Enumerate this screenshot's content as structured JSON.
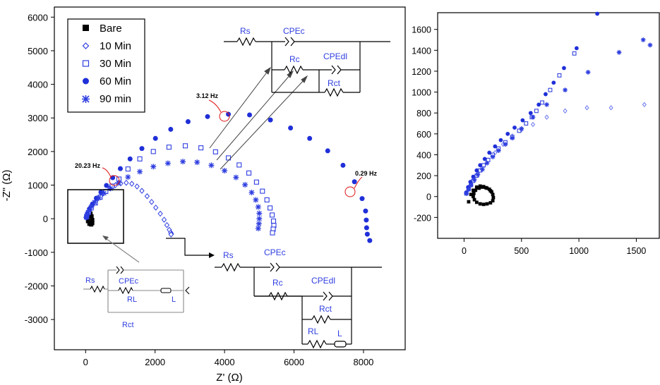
{
  "chart_data": [
    {
      "type": "scatter",
      "xlabel": "Z' (Ω)",
      "ylabel": "-Z\" (Ω)",
      "xlim": [
        -900,
        9200
      ],
      "ylim": [
        -3900,
        6300
      ],
      "xticks": [
        "0",
        "2000",
        "4000",
        "6000",
        "8000"
      ],
      "yticks": [
        "6000",
        "5000",
        "4000",
        "3000",
        "2000",
        "1000",
        "0",
        "-1000",
        "-2000",
        "-3000"
      ],
      "legend": {
        "position": "top-left",
        "entries": [
          "Bare",
          "10 Min",
          "30 Min",
          "60 Min",
          "90 min"
        ]
      },
      "series": [
        {
          "name": "Bare",
          "marker": "filled-square",
          "color": "#000000",
          "x": [
            80,
            110,
            140,
            170,
            190,
            190,
            160,
            110,
            70,
            60,
            80
          ],
          "y": [
            100,
            160,
            150,
            70,
            -40,
            -130,
            -170,
            -150,
            -70,
            20,
            100
          ]
        },
        {
          "name": "10 Min",
          "marker": "open-diamond",
          "color": "#2f3fe0",
          "x": [
            20,
            40,
            90,
            150,
            230,
            330,
            450,
            560,
            700,
            860,
            1010,
            1170,
            1330,
            1480,
            1620,
            1770,
            1900,
            2020,
            2150,
            2260,
            2340,
            2410,
            2450,
            2470,
            2460
          ],
          "y": [
            40,
            120,
            220,
            330,
            450,
            570,
            690,
            800,
            910,
            1000,
            1050,
            1070,
            1040,
            960,
            830,
            670,
            500,
            330,
            150,
            -30,
            -190,
            -330,
            -410,
            -450,
            -470
          ]
        },
        {
          "name": "30 Min",
          "marker": "open-square",
          "color": "#2f3fe0",
          "x": [
            30,
            80,
            160,
            280,
            420,
            580,
            760,
            960,
            1220,
            1560,
            1950,
            2400,
            2870,
            3320,
            3740,
            4110,
            4420,
            4700,
            4920,
            5090,
            5220,
            5310,
            5370,
            5410,
            5420,
            5400,
            5380
          ],
          "y": [
            60,
            180,
            320,
            470,
            640,
            810,
            970,
            1180,
            1480,
            1780,
            2000,
            2130,
            2170,
            2110,
            1990,
            1810,
            1600,
            1360,
            1090,
            820,
            560,
            320,
            110,
            -70,
            -200,
            -310,
            -420
          ]
        },
        {
          "name": "60 Min",
          "marker": "filled-circle",
          "color": "#1f2fd8",
          "x": [
            20,
            50,
            110,
            200,
            310,
            440,
            600,
            780,
            1000,
            1280,
            1620,
            2010,
            2450,
            2950,
            3510,
            4110,
            4720,
            5320,
            5900,
            6450,
            6970,
            7410,
            7740,
            7960,
            8060,
            8080,
            8090,
            8110,
            8180
          ],
          "y": [
            40,
            150,
            290,
            440,
            610,
            790,
            990,
            1220,
            1490,
            1780,
            2090,
            2390,
            2660,
            2890,
            3040,
            3110,
            3090,
            2940,
            2700,
            2390,
            2020,
            1590,
            1100,
            600,
            230,
            -40,
            -270,
            -460,
            -650
          ]
        },
        {
          "name": "90 min",
          "marker": "star",
          "color": "#2f3fe0",
          "x": [
            20,
            50,
            100,
            170,
            260,
            380,
            530,
            720,
            950,
            1220,
            1560,
            1950,
            2370,
            2800,
            3210,
            3620,
            4000,
            4330,
            4590,
            4780,
            4900,
            4970,
            5000,
            5000,
            4990,
            4970
          ],
          "y": [
            40,
            130,
            240,
            360,
            490,
            620,
            760,
            900,
            1070,
            1240,
            1400,
            1550,
            1650,
            1700,
            1680,
            1590,
            1430,
            1230,
            1010,
            780,
            560,
            350,
            160,
            0,
            -150,
            -290
          ]
        }
      ],
      "annotations": [
        "20.23 Hz",
        "3.12 Hz",
        "0.29 Hz"
      ],
      "circuits": {
        "top": [
          "Rs",
          "CPEc",
          "Rc",
          "CPEdl",
          "Rct"
        ],
        "bottom": [
          "Rs",
          "CPEc",
          "Rc",
          "CPEdl",
          "Rct",
          "RL",
          "L"
        ],
        "left": [
          "Rs",
          "CPEc",
          "RL",
          "L",
          "Rct"
        ]
      }
    },
    {
      "type": "scatter",
      "xlim": [
        -230,
        1700
      ],
      "ylim": [
        -400,
        1760
      ],
      "xticks": [
        "0",
        "500",
        "1000",
        "1500"
      ],
      "yticks": [
        "1600",
        "1400",
        "1200",
        "1000",
        "800",
        "600",
        "400",
        "200",
        "0",
        "-200"
      ],
      "series": [
        {
          "name": "Bare",
          "marker": "filled-square",
          "color": "#000000",
          "x": [
            40,
            60,
            80,
            110,
            140,
            170,
            200,
            230,
            250,
            255,
            250,
            230,
            200,
            170,
            140,
            110,
            90,
            80,
            85,
            100,
            130,
            160,
            190,
            220,
            240
          ],
          "y": [
            -50,
            20,
            60,
            90,
            100,
            95,
            80,
            55,
            20,
            -10,
            -40,
            -60,
            -70,
            -75,
            -70,
            -55,
            -30,
            0,
            30,
            60,
            80,
            90,
            85,
            70,
            45
          ]
        },
        {
          "name": "10 Min",
          "marker": "open-diamond",
          "color": "#6a78ee",
          "x": [
            20,
            40,
            60,
            90,
            120,
            160,
            210,
            270,
            340,
            420,
            500,
            600,
            720,
            880,
            1070,
            1280,
            1570
          ],
          "y": [
            30,
            70,
            110,
            160,
            220,
            280,
            350,
            420,
            500,
            580,
            640,
            690,
            760,
            820,
            850,
            850,
            880
          ]
        },
        {
          "name": "30 Min",
          "marker": "open-square",
          "color": "#3344dd",
          "x": [
            20,
            40,
            60,
            80,
            110,
            140,
            170,
            210,
            250,
            300,
            360,
            420,
            480,
            540,
            590,
            630,
            680,
            750,
            830,
            960
          ],
          "y": [
            30,
            70,
            110,
            150,
            200,
            250,
            300,
            350,
            400,
            460,
            520,
            570,
            630,
            700,
            760,
            820,
            900,
            1020,
            1160,
            1370
          ]
        },
        {
          "name": "60 Min",
          "marker": "filled-circle",
          "color": "#1f2fd8",
          "x": [
            20,
            35,
            55,
            80,
            110,
            140,
            180,
            220,
            270,
            320,
            380,
            440,
            510,
            580,
            650,
            710,
            780,
            870,
            980,
            1160
          ],
          "y": [
            40,
            90,
            140,
            190,
            250,
            300,
            360,
            420,
            480,
            540,
            600,
            660,
            730,
            800,
            880,
            980,
            1090,
            1230,
            1420,
            1750
          ]
        },
        {
          "name": "90 min",
          "marker": "star",
          "color": "#2f3fe0",
          "x": [
            20,
            40,
            60,
            90,
            120,
            160,
            200,
            250,
            300,
            360,
            420,
            500,
            600,
            720,
            880,
            1080,
            1350,
            1560,
            1620
          ],
          "y": [
            30,
            70,
            110,
            160,
            210,
            260,
            320,
            380,
            440,
            500,
            560,
            650,
            760,
            880,
            1020,
            1190,
            1380,
            1500,
            1450
          ]
        }
      ]
    }
  ]
}
